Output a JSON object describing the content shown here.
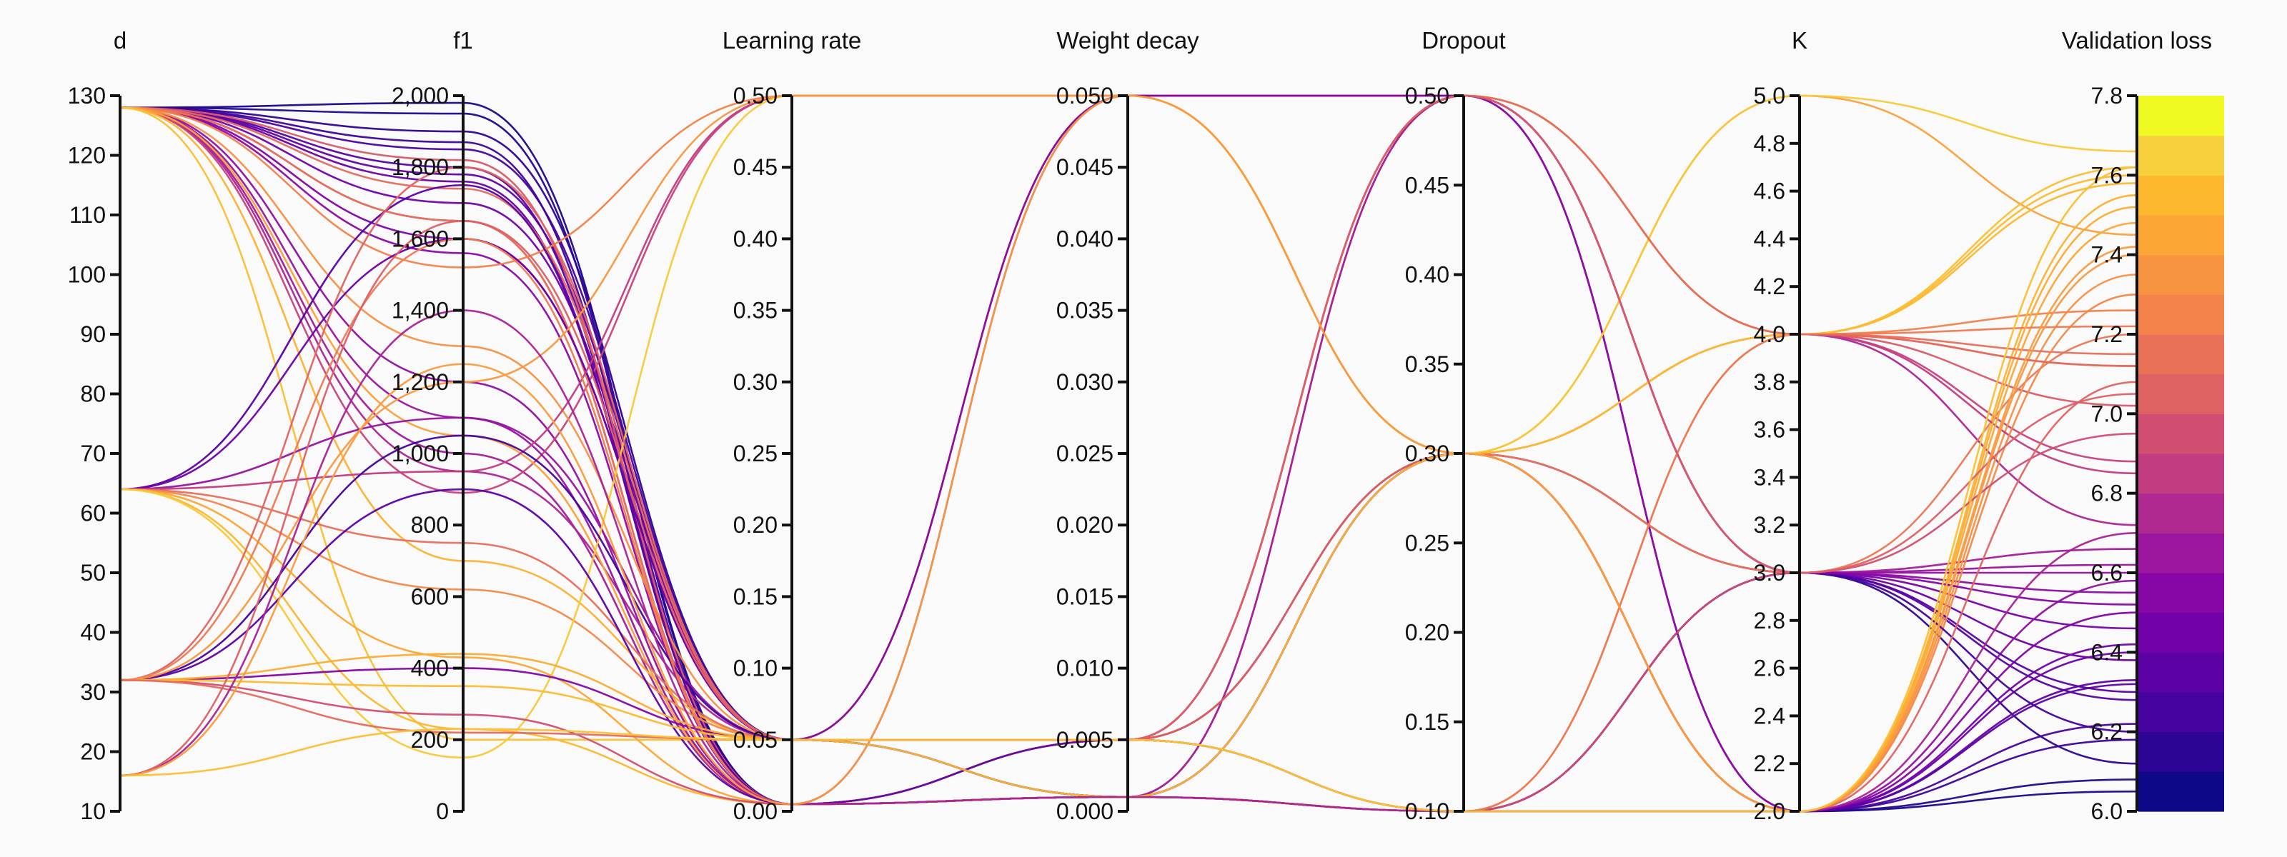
{
  "chart_data": {
    "type": "parallel-coordinates",
    "title": "",
    "axes": [
      {
        "label": "d",
        "range": [
          10,
          130
        ],
        "ticks": [
          "10",
          "20",
          "30",
          "40",
          "50",
          "60",
          "70",
          "80",
          "90",
          "100",
          "110",
          "120",
          "130"
        ]
      },
      {
        "label": "f1",
        "range": [
          0,
          2000
        ],
        "ticks": [
          "0",
          "200",
          "400",
          "600",
          "800",
          "1,000",
          "1,200",
          "1,400",
          "1,600",
          "1,800",
          "2,000"
        ]
      },
      {
        "label": "Learning rate",
        "range": [
          0,
          0.5
        ],
        "ticks": [
          "0.00",
          "0.05",
          "0.10",
          "0.15",
          "0.20",
          "0.25",
          "0.30",
          "0.35",
          "0.40",
          "0.45",
          "0.50"
        ]
      },
      {
        "label": "Weight decay",
        "range": [
          0,
          0.05
        ],
        "ticks": [
          "0.000",
          "0.005",
          "0.010",
          "0.015",
          "0.020",
          "0.025",
          "0.030",
          "0.035",
          "0.040",
          "0.045",
          "0.050"
        ]
      },
      {
        "label": "Dropout",
        "range": [
          0.1,
          0.5
        ],
        "ticks": [
          "0.10",
          "0.15",
          "0.20",
          "0.25",
          "0.30",
          "0.35",
          "0.40",
          "0.45",
          "0.50"
        ]
      },
      {
        "label": "K",
        "range": [
          2,
          5
        ],
        "ticks": [
          "2.0",
          "2.2",
          "2.4",
          "2.6",
          "2.8",
          "3.0",
          "3.2",
          "3.4",
          "3.6",
          "3.8",
          "4.0",
          "4.2",
          "4.4",
          "4.6",
          "4.8",
          "5.0"
        ]
      },
      {
        "label": "Validation loss",
        "range": [
          6.0,
          7.8
        ],
        "ticks": [
          "6.0",
          "6.2",
          "6.4",
          "6.6",
          "6.8",
          "7.0",
          "7.2",
          "7.4",
          "7.6",
          "7.8"
        ]
      }
    ],
    "colorbar": {
      "axis": "Validation loss",
      "colors": [
        "#0d0887",
        "#2c0594",
        "#46039f",
        "#5c01a6",
        "#7201a8",
        "#8707a6",
        "#9c179e",
        "#b02991",
        "#c23c81",
        "#d14e72",
        "#de6164",
        "#e97158",
        "#f2844b",
        "#f89441",
        "#fca636",
        "#fdb82e",
        "#f7d13d",
        "#f0f921"
      ]
    },
    "series": [
      {
        "values": [
          128,
          1980,
          0.005,
          0.005,
          0.1,
          2.0,
          6.05
        ]
      },
      {
        "values": [
          128,
          1950,
          0.005,
          0.001,
          0.3,
          2.0,
          6.08
        ]
      },
      {
        "values": [
          128,
          1900,
          0.05,
          0.005,
          0.5,
          3.0,
          6.12
        ]
      },
      {
        "values": [
          128,
          1870,
          0.005,
          0.001,
          0.1,
          2.0,
          6.18
        ]
      },
      {
        "values": [
          128,
          1850,
          0.05,
          0.005,
          0.5,
          2.0,
          6.22
        ]
      },
      {
        "values": [
          128,
          1800,
          0.005,
          0.001,
          0.3,
          3.0,
          6.28
        ]
      },
      {
        "values": [
          128,
          1780,
          0.05,
          0.005,
          0.1,
          2.0,
          6.33
        ]
      },
      {
        "values": [
          128,
          1760,
          0.005,
          0.001,
          0.5,
          3.0,
          6.38
        ]
      },
      {
        "values": [
          128,
          1700,
          0.05,
          0.05,
          0.5,
          2.0,
          6.42
        ]
      },
      {
        "values": [
          128,
          1650,
          0.005,
          0.001,
          0.1,
          3.0,
          6.46
        ]
      },
      {
        "values": [
          128,
          1600,
          0.05,
          0.005,
          0.3,
          2.0,
          6.5
        ]
      },
      {
        "values": [
          128,
          1560,
          0.005,
          0.001,
          0.1,
          3.0,
          6.55
        ]
      },
      {
        "values": [
          128,
          1200,
          0.005,
          0.005,
          0.5,
          2.0,
          6.58
        ]
      },
      {
        "values": [
          128,
          1100,
          0.05,
          0.001,
          0.3,
          3.0,
          6.62
        ]
      },
      {
        "values": [
          128,
          1000,
          0.005,
          0.005,
          0.1,
          3.0,
          6.66
        ]
      },
      {
        "values": [
          128,
          950,
          0.05,
          0.001,
          0.5,
          4.0,
          6.72
        ]
      },
      {
        "values": [
          128,
          890,
          0.5,
          0.05,
          0.5,
          4.0,
          6.88
        ]
      },
      {
        "values": [
          128,
          1820,
          0.005,
          0.001,
          0.3,
          4.0,
          7.02
        ]
      },
      {
        "values": [
          128,
          1740,
          0.05,
          0.05,
          0.5,
          4.0,
          7.12
        ]
      },
      {
        "values": [
          128,
          1650,
          0.005,
          0.005,
          0.3,
          3.0,
          7.2
        ]
      },
      {
        "values": [
          128,
          1520,
          0.5,
          0.05,
          0.5,
          4.0,
          7.26
        ]
      },
      {
        "values": [
          128,
          1300,
          0.05,
          0.001,
          0.1,
          2.0,
          7.35
        ]
      },
      {
        "values": [
          128,
          1050,
          0.005,
          0.005,
          0.3,
          5.0,
          7.45
        ]
      },
      {
        "values": [
          128,
          700,
          0.05,
          0.001,
          0.1,
          2.0,
          7.55
        ]
      },
      {
        "values": [
          128,
          200,
          0.05,
          0.05,
          0.5,
          4.0,
          7.62
        ]
      },
      {
        "values": [
          64,
          1750,
          0.005,
          0.005,
          0.1,
          3.0,
          6.3
        ]
      },
      {
        "values": [
          64,
          1600,
          0.05,
          0.001,
          0.3,
          2.0,
          6.4
        ]
      },
      {
        "values": [
          64,
          1100,
          0.005,
          0.05,
          0.5,
          3.0,
          6.6
        ]
      },
      {
        "values": [
          64,
          950,
          0.5,
          0.05,
          0.3,
          4.0,
          6.85
        ]
      },
      {
        "values": [
          64,
          750,
          0.05,
          0.005,
          0.1,
          4.0,
          7.15
        ]
      },
      {
        "values": [
          64,
          620,
          0.05,
          0.05,
          0.3,
          2.0,
          7.3
        ]
      },
      {
        "values": [
          64,
          430,
          0.005,
          0.001,
          0.1,
          2.0,
          7.48
        ]
      },
      {
        "values": [
          64,
          230,
          0.005,
          0.005,
          0.3,
          4.0,
          7.58
        ]
      },
      {
        "values": [
          64,
          150,
          0.5,
          0.05,
          0.3,
          5.0,
          7.66
        ]
      },
      {
        "values": [
          32,
          1050,
          0.05,
          0.001,
          0.1,
          3.0,
          6.2
        ]
      },
      {
        "values": [
          32,
          900,
          0.005,
          0.005,
          0.3,
          2.0,
          6.32
        ]
      },
      {
        "values": [
          32,
          400,
          0.05,
          0.05,
          0.5,
          3.0,
          6.52
        ]
      },
      {
        "values": [
          32,
          270,
          0.005,
          0.001,
          0.1,
          3.0,
          6.95
        ]
      },
      {
        "values": [
          32,
          1800,
          0.05,
          0.005,
          0.3,
          2.0,
          7.08
        ]
      },
      {
        "values": [
          32,
          1600,
          0.005,
          0.001,
          0.1,
          4.0,
          7.22
        ]
      },
      {
        "values": [
          32,
          1200,
          0.5,
          0.05,
          0.3,
          2.0,
          7.4
        ]
      },
      {
        "values": [
          32,
          440,
          0.05,
          0.005,
          0.1,
          2.0,
          7.52
        ]
      },
      {
        "values": [
          32,
          350,
          0.05,
          0.001,
          0.3,
          4.0,
          7.6
        ]
      },
      {
        "values": [
          32,
          220,
          0.05,
          0.005,
          0.5,
          4.0,
          7.12
        ]
      },
      {
        "values": [
          16,
          1400,
          0.005,
          0.001,
          0.1,
          2.0,
          6.7
        ]
      },
      {
        "values": [
          16,
          1650,
          0.05,
          0.005,
          0.5,
          3.0,
          7.05
        ]
      },
      {
        "values": [
          16,
          1250,
          0.005,
          0.05,
          0.3,
          2.0,
          7.42
        ]
      },
      {
        "values": [
          16,
          230,
          0.05,
          0.005,
          0.1,
          2.0,
          7.62
        ]
      }
    ]
  }
}
